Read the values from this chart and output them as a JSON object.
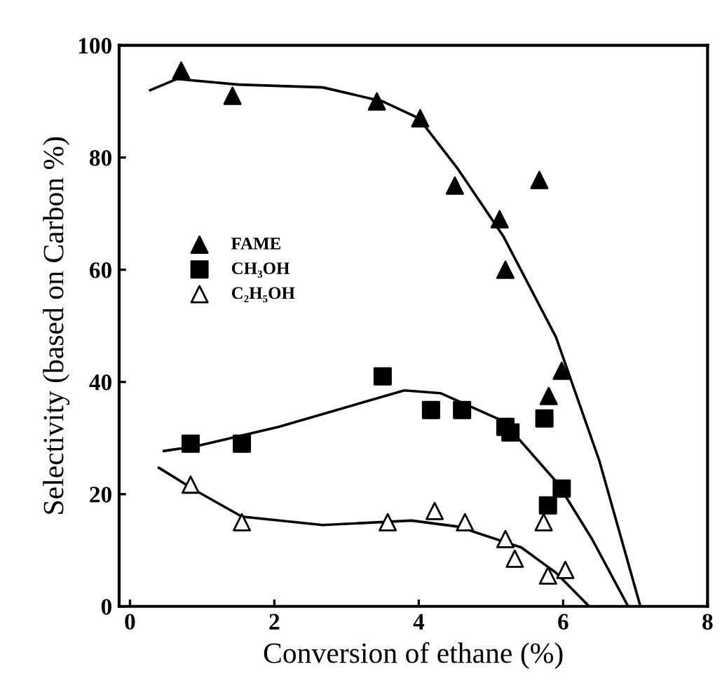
{
  "chart_data": {
    "type": "scatter",
    "xlabel": "Conversion of ethane (%)",
    "ylabel": "Selectivity (based on Carbon %)",
    "xlim": [
      -0.15,
      8
    ],
    "ylim": [
      0,
      100
    ],
    "xticks": [
      0,
      2,
      4,
      6,
      8
    ],
    "yticks": [
      0,
      20,
      40,
      60,
      80,
      100
    ],
    "grid": false,
    "legend": "left",
    "series": [
      {
        "name": "FAME",
        "marker": "triangle",
        "color": "#000000",
        "x": [
          0.71,
          1.42,
          3.42,
          4.02,
          4.5,
          5.67,
          5.12,
          5.2,
          5.8,
          5.98
        ],
        "values": [
          95.5,
          91,
          90,
          87,
          75,
          76,
          69,
          60,
          37.5,
          42
        ]
      },
      {
        "name": "CH₃OH",
        "marker": "square",
        "color": "#000000",
        "x": [
          0.84,
          1.55,
          3.5,
          4.17,
          4.6,
          5.2,
          5.27,
          5.74,
          5.79,
          5.98
        ],
        "values": [
          29,
          29,
          41,
          35,
          35,
          32,
          31,
          33.5,
          18,
          21
        ]
      },
      {
        "name": "C₂H₅OH",
        "marker": "triangle",
        "color": "#ffffff",
        "x": [
          0.84,
          1.55,
          3.57,
          4.22,
          4.64,
          5.2,
          5.33,
          5.73,
          5.79,
          6.03
        ],
        "values": [
          21.7,
          15,
          15,
          17,
          15,
          12,
          8.5,
          15,
          5.5,
          6.5
        ]
      },
      {
        "type": "line",
        "marker": "none",
        "color": "#000000",
        "x": [
          0.28,
          0.65,
          1.5,
          2.67,
          3.5,
          4.0,
          4.54,
          5.17,
          5.9,
          6.5,
          7.07
        ],
        "values": [
          92,
          94,
          93,
          92.5,
          90,
          87,
          78,
          66,
          48,
          26,
          0
        ]
      },
      {
        "type": "line",
        "marker": "none",
        "color": "#000000",
        "x": [
          0.47,
          0.9,
          2.06,
          3.8,
          4.3,
          5.17,
          5.92,
          6.4,
          6.9
        ],
        "values": [
          27.7,
          28.5,
          32,
          38.5,
          38,
          33,
          22,
          12,
          0
        ]
      },
      {
        "type": "line",
        "marker": "none",
        "color": "#000000",
        "x": [
          0.4,
          0.93,
          1.55,
          2.67,
          3.9,
          4.55,
          5.42,
          5.9,
          6.36
        ],
        "values": [
          24.7,
          20.5,
          16,
          14.5,
          15.3,
          14.2,
          10.5,
          6,
          0
        ]
      }
    ]
  }
}
